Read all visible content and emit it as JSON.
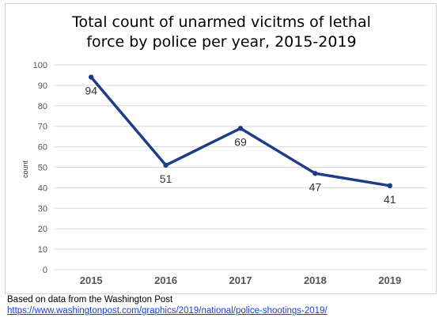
{
  "chart_data": {
    "type": "line",
    "title_lines": [
      "Total count of unarmed vicitms of lethal",
      "force by police per year, 2015-2019"
    ],
    "xlabel": "",
    "ylabel": "count",
    "categories": [
      "2015",
      "2016",
      "2017",
      "2018",
      "2019"
    ],
    "series": [
      {
        "values": [
          94,
          51,
          69,
          47,
          41
        ],
        "color": "#1f3d87"
      }
    ],
    "ylim": [
      0,
      100
    ],
    "yticks": [
      0,
      10,
      20,
      30,
      40,
      50,
      60,
      70,
      80,
      90,
      100
    ],
    "grid": true,
    "data_labels": true
  },
  "source": {
    "text": "Based on data from the Washington Post",
    "url": "https://www.washingtonpost.com/graphics/2019/national/police-shootings-2019/"
  }
}
